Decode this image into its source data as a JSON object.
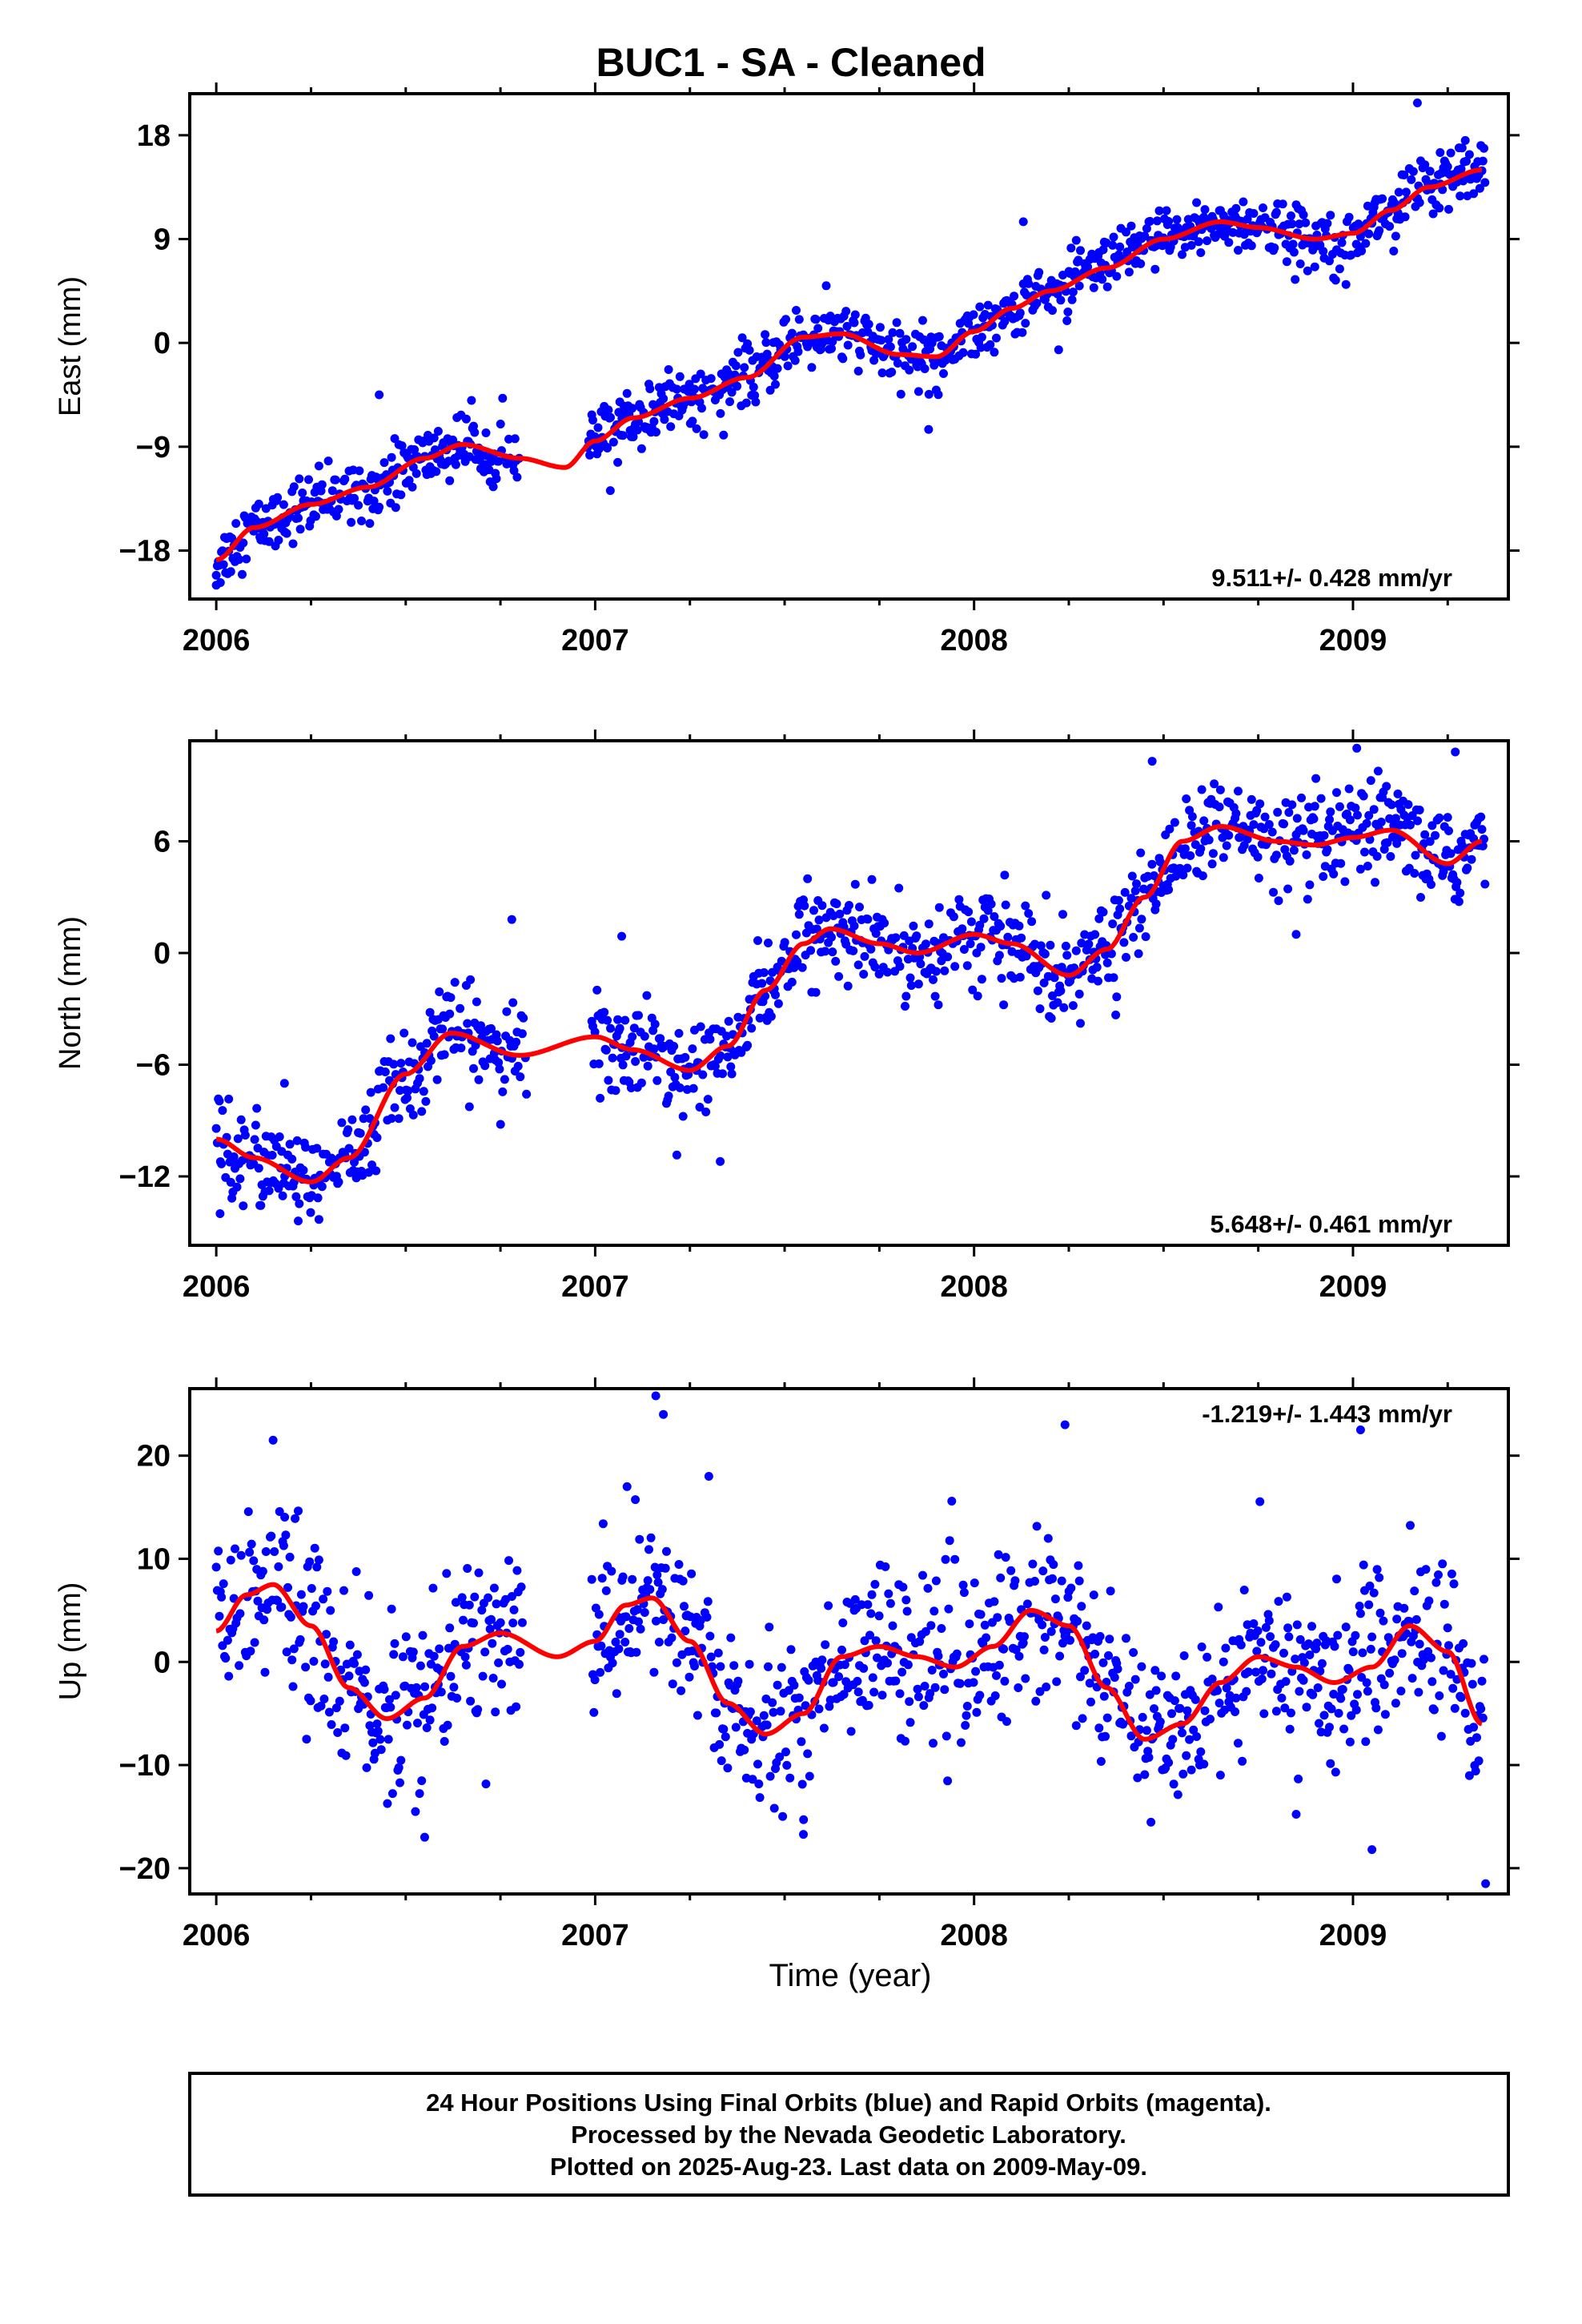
{
  "title": "BUC1  - SA - Cleaned",
  "xlabel": "Time (year)",
  "footer": {
    "line1": "24 Hour Positions Using Final Orbits (blue) and Rapid Orbits (magenta).",
    "line2": "Processed by the Nevada Geodetic Laboratory.",
    "line3": "Plotted on 2025-Aug-23. Last data on 2009-May-09."
  },
  "colors": {
    "points": "#0000ff",
    "fit": "#ff0000",
    "frame": "#000000"
  },
  "chart_data": [
    {
      "type": "scatter",
      "ylabel": "East (mm)",
      "rate": "9.511+/- 0.428 mm/yr",
      "xlim": [
        2005.93,
        2009.41
      ],
      "ylim": [
        -22.2,
        21.6
      ],
      "yticks": [
        18,
        9,
        0,
        -9,
        -18
      ],
      "ytick_labels": [
        "18",
        "9",
        "0",
        "−9",
        "−18"
      ],
      "xticks": [
        2006,
        2007,
        2008,
        2009
      ],
      "xtick_labels": [
        "2006",
        "2007",
        "2008",
        "2009"
      ],
      "series": [
        {
          "kind": "scatter",
          "color": "#0000ff",
          "noise": 1.3,
          "gaps": [
            [
              2006.8,
              2006.98
            ]
          ],
          "outliers": [
            [
              2006.0,
              -21.0
            ],
            [
              2006.43,
              -4.5
            ],
            [
              2007.04,
              -12.8
            ],
            [
              2007.88,
              -7.5
            ],
            [
              2008.13,
              10.5
            ],
            [
              2009.17,
              20.8
            ],
            [
              2009.23,
              16.5
            ]
          ]
        },
        {
          "kind": "line",
          "color": "#ff0000",
          "x": [
            2006.0,
            2006.1,
            2006.25,
            2006.4,
            2006.55,
            2006.65,
            2006.8,
            2006.92,
            2007.0,
            2007.1,
            2007.25,
            2007.4,
            2007.55,
            2007.65,
            2007.8,
            2007.9,
            2008.0,
            2008.1,
            2008.2,
            2008.35,
            2008.5,
            2008.65,
            2008.75,
            2008.9,
            2009.0,
            2009.1,
            2009.2,
            2009.34
          ],
          "y": [
            -18.8,
            -16.0,
            -14.0,
            -12.5,
            -10.0,
            -8.8,
            -10.0,
            -10.8,
            -8.5,
            -6.5,
            -4.8,
            -3.0,
            0.5,
            0.8,
            -1.0,
            -1.2,
            1.0,
            3.0,
            4.5,
            6.5,
            9.0,
            10.5,
            10.0,
            9.0,
            9.5,
            11.5,
            13.5,
            15.0
          ]
        }
      ]
    },
    {
      "type": "scatter",
      "ylabel": "North (mm)",
      "rate": "5.648+/- 0.461 mm/yr",
      "xlim": [
        2005.93,
        2009.41
      ],
      "ylim": [
        -15.7,
        11.4
      ],
      "yticks": [
        6,
        0,
        -6,
        -12
      ],
      "ytick_labels": [
        "6",
        "0",
        "−6",
        "−12"
      ],
      "xticks": [
        2006,
        2007,
        2008,
        2009
      ],
      "xtick_labels": [
        "2006",
        "2007",
        "2008",
        "2009"
      ],
      "series": [
        {
          "kind": "scatter",
          "color": "#0000ff",
          "noise": 1.25,
          "gaps": [
            [
              2006.82,
              2006.99
            ]
          ],
          "outliers": [
            [
              2006.01,
              -14.0
            ],
            [
              2006.18,
              -7.0
            ],
            [
              2006.78,
              1.8
            ],
            [
              2007.07,
              0.9
            ],
            [
              2007.33,
              -11.2
            ],
            [
              2008.47,
              10.3
            ],
            [
              2008.85,
              1.0
            ],
            [
              2009.01,
              11.0
            ],
            [
              2009.27,
              10.8
            ]
          ]
        },
        {
          "kind": "line",
          "color": "#ff0000",
          "x": [
            2006.0,
            2006.1,
            2006.25,
            2006.35,
            2006.5,
            2006.62,
            2006.8,
            2007.0,
            2007.1,
            2007.25,
            2007.35,
            2007.45,
            2007.55,
            2007.62,
            2007.75,
            2007.85,
            2008.0,
            2008.1,
            2008.25,
            2008.35,
            2008.45,
            2008.55,
            2008.65,
            2008.8,
            2008.9,
            2009.0,
            2009.1,
            2009.25,
            2009.34
          ],
          "y": [
            -10.0,
            -11.0,
            -12.3,
            -11.0,
            -6.5,
            -4.3,
            -5.5,
            -4.5,
            -5.2,
            -6.3,
            -5.0,
            -2.0,
            0.5,
            1.3,
            0.5,
            0.0,
            1.0,
            0.5,
            -1.2,
            0.2,
            3.0,
            6.0,
            6.8,
            6.0,
            5.8,
            6.2,
            6.6,
            4.8,
            6.0
          ]
        }
      ]
    },
    {
      "type": "scatter",
      "ylabel": "Up (mm)",
      "xlabel": "Time (year)",
      "rate": "-1.219+/- 1.443 mm/yr",
      "xlim": [
        2005.93,
        2009.41
      ],
      "ylim": [
        -22.5,
        26.5
      ],
      "yticks": [
        20,
        10,
        0,
        -10,
        -20
      ],
      "ytick_labels": [
        "20",
        "10",
        "0",
        "−10",
        "−20"
      ],
      "xticks": [
        2006,
        2007,
        2008,
        2009
      ],
      "xtick_labels": [
        "2006",
        "2007",
        "2008",
        "2009"
      ],
      "series": [
        {
          "kind": "scatter",
          "color": "#0000ff",
          "noise": 4.2,
          "gaps": [
            [
              2006.81,
              2006.99
            ]
          ],
          "outliers": [
            [
              2006.15,
              21.5
            ],
            [
              2006.55,
              -17.0
            ],
            [
              2007.16,
              25.8
            ],
            [
              2007.18,
              24.0
            ],
            [
              2007.3,
              18.0
            ],
            [
              2007.55,
              -15.3
            ],
            [
              2008.24,
              23.0
            ],
            [
              2009.02,
              22.5
            ],
            [
              2009.35,
              -21.5
            ],
            [
              2009.05,
              -18.2
            ]
          ]
        },
        {
          "kind": "line",
          "color": "#ff0000",
          "x": [
            2006.0,
            2006.08,
            2006.15,
            2006.25,
            2006.35,
            2006.45,
            2006.55,
            2006.65,
            2006.75,
            2006.9,
            2007.0,
            2007.08,
            2007.15,
            2007.25,
            2007.35,
            2007.45,
            2007.55,
            2007.65,
            2007.75,
            2007.85,
            2007.95,
            2008.05,
            2008.15,
            2008.25,
            2008.35,
            2008.45,
            2008.55,
            2008.65,
            2008.75,
            2008.85,
            2008.95,
            2009.05,
            2009.15,
            2009.25,
            2009.34
          ],
          "y": [
            3.0,
            6.5,
            7.5,
            3.5,
            -2.5,
            -5.5,
            -3.5,
            1.5,
            2.8,
            0.5,
            2.0,
            5.5,
            6.2,
            2.0,
            -4.0,
            -7.0,
            -5.0,
            0.5,
            1.5,
            0.5,
            -0.5,
            1.5,
            5.0,
            3.5,
            -2.5,
            -7.5,
            -6.0,
            -2.0,
            0.5,
            -0.5,
            -2.0,
            -0.5,
            3.5,
            1.0,
            -6.0
          ]
        }
      ]
    }
  ]
}
